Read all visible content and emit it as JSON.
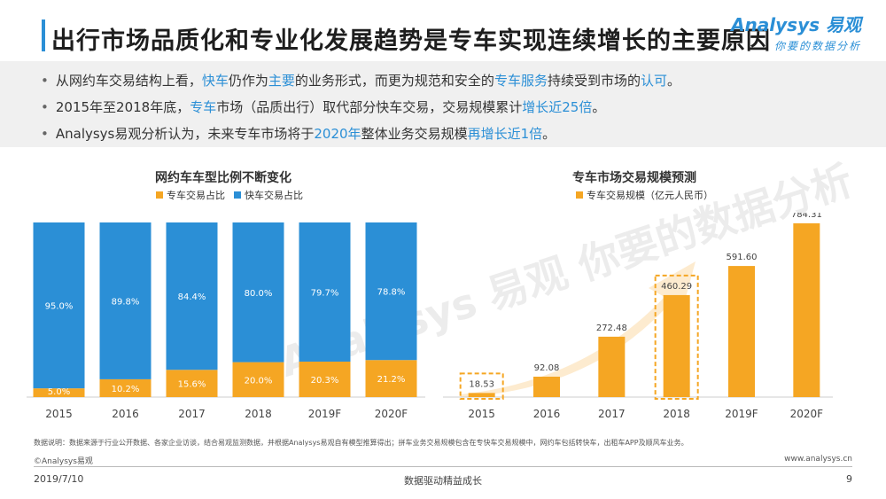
{
  "header": {
    "title": "出行市场品质化和专业化发展趋势是专车实现连续增长的主要原因",
    "logo_main": "Analysys 易观",
    "logo_sub": "你要的数据分析"
  },
  "bullets": [
    {
      "parts": [
        {
          "text": "从网约车交易结构上看，",
          "hl": false
        },
        {
          "text": "快车",
          "hl": true
        },
        {
          "text": "仍作为",
          "hl": false
        },
        {
          "text": "主要",
          "hl": true
        },
        {
          "text": "的业务形式，而更为规范和安全的",
          "hl": false
        },
        {
          "text": "专车服务",
          "hl": true
        },
        {
          "text": "持续受到市场的",
          "hl": false
        },
        {
          "text": "认可",
          "hl": true
        },
        {
          "text": "。",
          "hl": false
        }
      ]
    },
    {
      "parts": [
        {
          "text": "2015年至2018年底，",
          "hl": false
        },
        {
          "text": "专车",
          "hl": true
        },
        {
          "text": "市场（品质出行）取代部分快车交易，交易规模累计",
          "hl": false
        },
        {
          "text": "增长近25倍",
          "hl": true
        },
        {
          "text": "。",
          "hl": false
        }
      ]
    },
    {
      "parts": [
        {
          "text": "Analysys易观分析认为，未来专车市场将于",
          "hl": false
        },
        {
          "text": "2020年",
          "hl": true
        },
        {
          "text": "整体业务交易规模",
          "hl": false
        },
        {
          "text": "再增长近1倍",
          "hl": true
        },
        {
          "text": "。",
          "hl": false
        }
      ]
    }
  ],
  "watermark": "Analysys 易观 你要的数据分析",
  "chart_data": [
    {
      "type": "bar",
      "stacked": true,
      "title": "网约车车型比例不断变化",
      "categories": [
        "2015",
        "2016",
        "2017",
        "2018",
        "2019F",
        "2020F"
      ],
      "series": [
        {
          "name": "专车交易占比",
          "color": "#f5a623",
          "values": [
            5.0,
            10.2,
            15.6,
            20.0,
            20.3,
            21.2
          ],
          "labels": [
            "5.0%",
            "10.2%",
            "15.6%",
            "20.0%",
            "20.3%",
            "21.2%"
          ]
        },
        {
          "name": "快车交易占比",
          "color": "#2b8fd6",
          "values": [
            95.0,
            89.8,
            84.4,
            80.0,
            79.7,
            78.8
          ],
          "labels": [
            "95.0%",
            "89.8%",
            "84.4%",
            "80.0%",
            "79.7%",
            "78.8%"
          ]
        }
      ],
      "ylim": [
        0,
        100
      ]
    },
    {
      "type": "bar",
      "title": "专车市场交易规模预测",
      "categories": [
        "2015",
        "2016",
        "2017",
        "2018",
        "2019F",
        "2020F"
      ],
      "series": [
        {
          "name": "专车交易规模（亿元人民币）",
          "color": "#f5a623",
          "values": [
            18.53,
            92.08,
            272.48,
            460.29,
            591.6,
            784.31
          ],
          "labels": [
            "18.53",
            "92.08",
            "272.48",
            "460.29",
            "591.60",
            "784.31"
          ]
        }
      ],
      "highlighted": [
        "2015",
        "2018"
      ],
      "ylim": [
        0,
        800
      ]
    }
  ],
  "footer": {
    "note": "数据说明：数据来源于行业公开数据、各家企业访谈，结合易观监测数据，并根据Analysys易观自有模型推算得出；拼车业务交易规模包含在专快车交易规模中，网约车包括转快车，出租车APP及顺风车业务。",
    "copyright": "©Analysys易观",
    "website": "www.analysys.cn",
    "date": "2019/7/10",
    "slogan": "数据驱动精益成长",
    "page": "9"
  }
}
